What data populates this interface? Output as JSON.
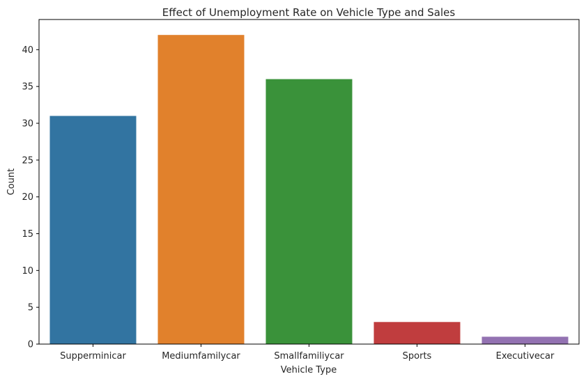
{
  "chart_data": {
    "type": "bar",
    "title": "Effect of Unemployment Rate on Vehicle Type and Sales",
    "xlabel": "Vehicle Type",
    "ylabel": "Count",
    "categories": [
      "Supperminicar",
      "Mediumfamilycar",
      "Smallfamiliycar",
      "Sports",
      "Executivecar"
    ],
    "values": [
      31,
      42,
      36,
      3,
      1
    ],
    "colors": [
      "#3274a1",
      "#e1812c",
      "#3a923a",
      "#c03d3e",
      "#9372b2"
    ],
    "ylim": [
      0,
      44.1
    ],
    "yticks": [
      0,
      5,
      10,
      15,
      20,
      25,
      30,
      35,
      40
    ],
    "grid": false,
    "legend": "none"
  }
}
